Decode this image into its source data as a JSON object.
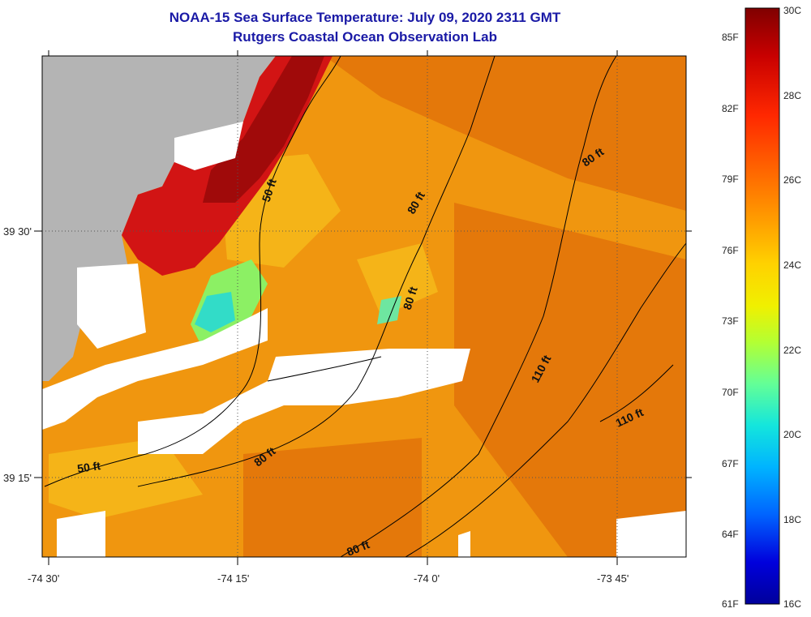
{
  "title": {
    "line1": "NOAA-15 Sea Surface Temperature:  July 09, 2020 2311 GMT",
    "line2": "Rutgers Coastal Ocean Observation Lab"
  },
  "map": {
    "lat_labels": [
      "39 30'",
      "39 15'"
    ],
    "lon_labels": [
      "-74 30'",
      "-74 15'",
      "-74 0'",
      "-73 45'"
    ],
    "contour_labels": [
      "50 ft",
      "80 ft",
      "80 ft",
      "80 ft",
      "110 ft",
      "110 ft",
      "50 ft",
      "80 ft",
      "80 ft"
    ],
    "colors": {
      "land": "#b4b4b4",
      "cloud": "#ffffff",
      "ocean": "#f0960f",
      "warm": "#d21414",
      "hot": "#a00a0a",
      "cool": "#8cf064",
      "cold": "#32dcc8"
    }
  },
  "colorbar": {
    "celsius": [
      "30C",
      "28C",
      "26C",
      "24C",
      "22C",
      "20C",
      "18C",
      "16C"
    ],
    "fahrenheit": [
      "85F",
      "82F",
      "79F",
      "76F",
      "73F",
      "70F",
      "67F",
      "64F",
      "61F"
    ],
    "stops": [
      "#800000",
      "#c80000",
      "#ff2800",
      "#ff6400",
      "#ffa000",
      "#ffd200",
      "#f0f000",
      "#b4ff32",
      "#64ff96",
      "#14e6dc",
      "#00b4ff",
      "#0064ff",
      "#0000dc",
      "#00009b"
    ]
  }
}
